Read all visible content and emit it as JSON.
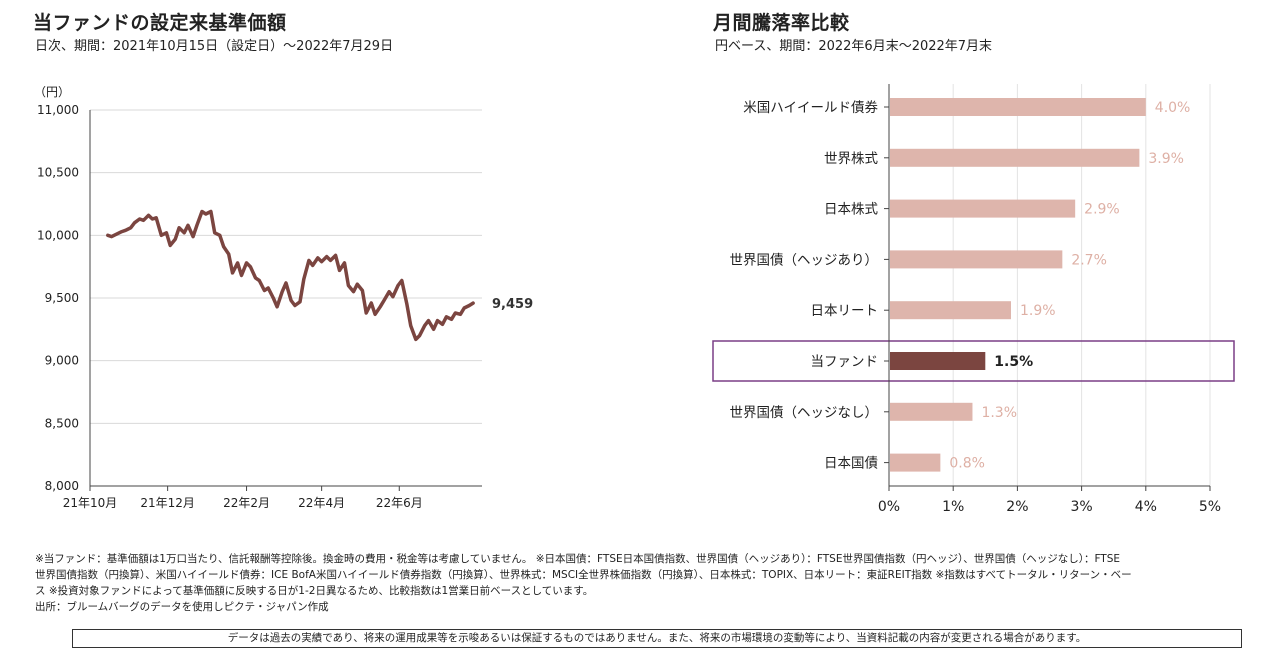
{
  "left_title": "当ファンドの設定来基準価額",
  "left_subtitle": "日次、期間：2021年10月15日（設定日）～2022年7月29日",
  "right_title": "月間騰落率比較",
  "right_subtitle": "円ベース、期間：2022年6月末～2022年7月末",
  "chart_data": [
    {
      "type": "line",
      "ylabel": "（円）",
      "ylim": [
        8000,
        11000
      ],
      "yticks": [
        "11,000",
        "10,500",
        "10,000",
        "9,500",
        "9,000",
        "8,500",
        "8,000"
      ],
      "xtick_labels": [
        "21年10月",
        "21年12月",
        "22年2月",
        "22年4月",
        "22年6月"
      ],
      "end_label": "9,459",
      "line_color": "#7b4540",
      "series": [
        {
          "x": [
            "2021-10-15",
            "2021-10-18",
            "2021-10-22",
            "2021-10-26",
            "2021-10-29",
            "2021-11-02",
            "2021-11-05",
            "2021-11-09",
            "2021-11-12",
            "2021-11-16",
            "2021-11-19",
            "2021-11-22",
            "2021-11-26",
            "2021-11-30",
            "2021-12-03",
            "2021-12-07",
            "2021-12-10",
            "2021-12-14",
            "2021-12-17",
            "2021-12-21",
            "2021-12-24",
            "2021-12-28",
            "2021-12-31",
            "2022-01-04",
            "2022-01-07",
            "2022-01-11",
            "2022-01-14",
            "2022-01-18",
            "2022-01-21",
            "2022-01-25",
            "2022-01-28",
            "2022-02-01",
            "2022-02-04",
            "2022-02-08",
            "2022-02-11",
            "2022-02-15",
            "2022-02-18",
            "2022-02-22",
            "2022-02-25",
            "2022-03-01",
            "2022-03-04",
            "2022-03-08",
            "2022-03-11",
            "2022-03-15",
            "2022-03-18",
            "2022-03-22",
            "2022-03-25",
            "2022-03-29",
            "2022-04-01",
            "2022-04-05",
            "2022-04-08",
            "2022-04-12",
            "2022-04-15",
            "2022-04-19",
            "2022-04-22",
            "2022-04-26",
            "2022-04-29",
            "2022-05-03",
            "2022-05-06",
            "2022-05-10",
            "2022-05-13",
            "2022-05-17",
            "2022-05-20",
            "2022-05-24",
            "2022-05-27",
            "2022-05-31",
            "2022-06-03",
            "2022-06-07",
            "2022-06-10",
            "2022-06-14",
            "2022-06-17",
            "2022-06-21",
            "2022-06-24",
            "2022-06-28",
            "2022-07-01",
            "2022-07-05",
            "2022-07-08",
            "2022-07-12",
            "2022-07-15",
            "2022-07-19",
            "2022-07-22",
            "2022-07-26",
            "2022-07-29"
          ],
          "values": [
            10000,
            9990,
            10010,
            10030,
            10040,
            10060,
            10100,
            10130,
            10120,
            10160,
            10130,
            10140,
            10000,
            10020,
            9920,
            9970,
            10060,
            10020,
            10080,
            9990,
            10080,
            10190,
            10170,
            10190,
            10020,
            10000,
            9910,
            9850,
            9700,
            9780,
            9680,
            9780,
            9750,
            9660,
            9640,
            9560,
            9580,
            9500,
            9430,
            9550,
            9620,
            9480,
            9440,
            9470,
            9650,
            9800,
            9760,
            9820,
            9790,
            9830,
            9800,
            9840,
            9720,
            9780,
            9600,
            9550,
            9610,
            9560,
            9380,
            9460,
            9370,
            9430,
            9480,
            9550,
            9510,
            9600,
            9640,
            9450,
            9280,
            9170,
            9200,
            9280,
            9320,
            9250,
            9320,
            9290,
            9350,
            9330,
            9380,
            9370,
            9420,
            9440,
            9459
          ]
        }
      ]
    },
    {
      "type": "bar",
      "orientation": "horizontal",
      "categories": [
        "米国ハイイールド債券",
        "世界株式",
        "日本株式",
        "世界国債（ヘッジあり）",
        "日本リート",
        "当ファンド",
        "世界国債（ヘッジなし）",
        "日本国債"
      ],
      "values": [
        4.0,
        3.9,
        2.9,
        2.7,
        1.9,
        1.5,
        1.3,
        0.8
      ],
      "value_labels": [
        "4.0%",
        "3.9%",
        "2.9%",
        "2.7%",
        "1.9%",
        "1.5%",
        "1.3%",
        "0.8%"
      ],
      "xlim": [
        0,
        5
      ],
      "xtick_labels": [
        "0%",
        "1%",
        "2%",
        "3%",
        "4%",
        "5%"
      ],
      "highlight_index": 5,
      "colors": {
        "bar": "#deb5ac",
        "highlight": "#7b4540",
        "label": "#deb0a5",
        "highlight_box": "#7a3e86"
      }
    }
  ],
  "notes": [
    "※当ファンド：基準価額は1万口当たり、信託報酬等控除後。換金時の費用・税金等は考慮していません。 ※日本国債：FTSE日本国債指数、世界国債（ヘッジあり）：FTSE世界国債指数（円ヘッジ）、世界国債（ヘッジなし）：FTSE",
    "世界国債指数（円換算）、米国ハイイールド債券：ICE BofA米国ハイイールド債券指数（円換算）、世界株式：MSCI全世界株価指数（円換算）、日本株式：TOPIX、日本リート：東証REIT指数 ※指数はすべてトータル・リターン・ベー",
    "ス ※投資対象ファンドによって基準価額に反映する日が1-2日異なるため、比較指数は1営業日前ベースとしています。",
    "出所：ブルームバーグのデータを使用しピクテ・ジャパン作成"
  ],
  "disclaimer": "データは過去の実績であり、将来の運用成果等を示唆あるいは保証するものではありません。また、将来の市場環境の変動等により、当資料記載の内容が変更される場合があります。"
}
